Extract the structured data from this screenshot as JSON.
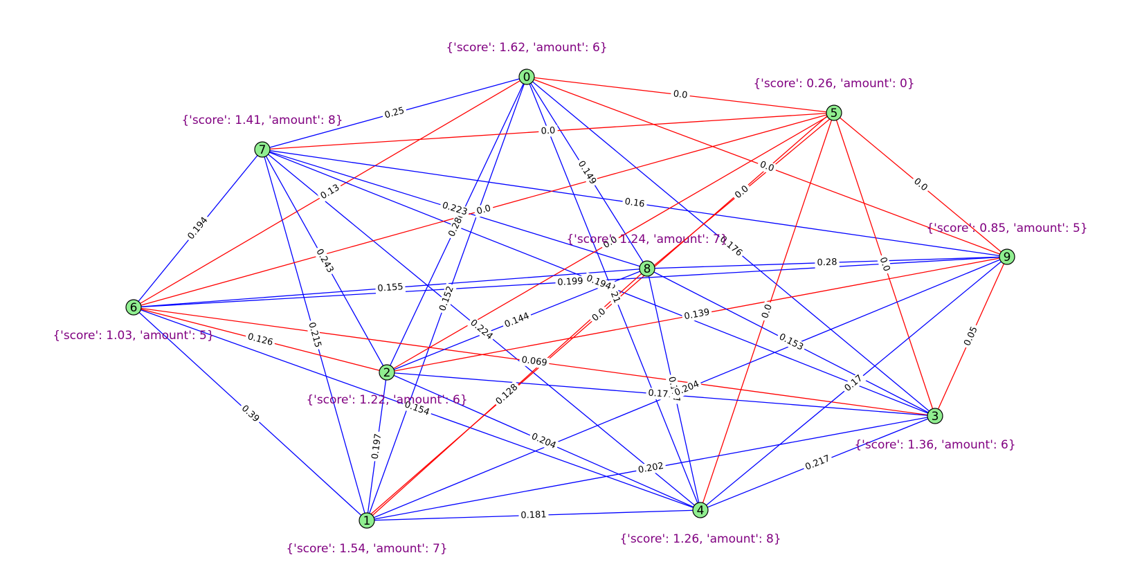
{
  "colors": {
    "node_fill": "#90ee90",
    "attr_text": "#800080",
    "edge_blue": "#0000ff",
    "edge_red": "#ff0000"
  },
  "nodes": [
    {
      "id": "0",
      "attr": "{'score': 1.62, 'amount': 6}"
    },
    {
      "id": "1",
      "attr": "{'score': 1.54, 'amount': 7}"
    },
    {
      "id": "2",
      "attr": "{'score': 1.22, 'amount': 6}"
    },
    {
      "id": "3",
      "attr": "{'score': 1.36, 'amount': 6}"
    },
    {
      "id": "4",
      "attr": "{'score': 1.26, 'amount': 8}"
    },
    {
      "id": "5",
      "attr": "{'score': 0.26, 'amount': 0}"
    },
    {
      "id": "6",
      "attr": "{'score': 1.03, 'amount': 5}"
    },
    {
      "id": "7",
      "attr": "{'score': 1.41, 'amount': 8}"
    },
    {
      "id": "8",
      "attr": "{'score': 1.24, 'amount': 7}"
    },
    {
      "id": "9",
      "attr": "{'score': 0.85, 'amount': 5}"
    }
  ],
  "edges": [
    {
      "source": "0",
      "target": "7",
      "label": "0.25",
      "color": "blue"
    },
    {
      "source": "0",
      "target": "5",
      "label": "0.0",
      "color": "red"
    },
    {
      "source": "0",
      "target": "6",
      "label": "0.13",
      "color": "red"
    },
    {
      "source": "0",
      "target": "2",
      "label": "0.286",
      "color": "blue"
    },
    {
      "source": "0",
      "target": "1",
      "label": "0.152",
      "color": "blue"
    },
    {
      "source": "0",
      "target": "8",
      "label": "0.149",
      "color": "blue"
    },
    {
      "source": "0",
      "target": "4",
      "label": "0.21",
      "color": "blue"
    },
    {
      "source": "0",
      "target": "3",
      "label": "0.176",
      "color": "blue"
    },
    {
      "source": "0",
      "target": "9",
      "label": "0.0",
      "color": "red"
    },
    {
      "source": "7",
      "target": "5",
      "label": "0.0",
      "color": "red"
    },
    {
      "source": "7",
      "target": "6",
      "label": "0.194",
      "color": "blue"
    },
    {
      "source": "7",
      "target": "1",
      "label": "0.215",
      "color": "blue"
    },
    {
      "source": "7",
      "target": "2",
      "label": "0.243",
      "color": "blue"
    },
    {
      "source": "7",
      "target": "4",
      "label": "0.224",
      "color": "blue"
    },
    {
      "source": "7",
      "target": "3",
      "label": "0.194",
      "color": "blue"
    },
    {
      "source": "7",
      "target": "8",
      "label": "0.223",
      "color": "blue"
    },
    {
      "source": "7",
      "target": "9",
      "label": "0.16",
      "color": "blue"
    },
    {
      "source": "5",
      "target": "6",
      "label": "0.0",
      "color": "red"
    },
    {
      "source": "5",
      "target": "2",
      "label": "0.0",
      "color": "red"
    },
    {
      "source": "5",
      "target": "1",
      "label": "0.0",
      "color": "red"
    },
    {
      "source": "5",
      "target": "8",
      "label": "0.0",
      "color": "red"
    },
    {
      "source": "5",
      "target": "4",
      "label": "0.0",
      "color": "red"
    },
    {
      "source": "5",
      "target": "3",
      "label": "0.0",
      "color": "red"
    },
    {
      "source": "5",
      "target": "9",
      "label": "0.0",
      "color": "red"
    },
    {
      "source": "6",
      "target": "8",
      "label": "0.155",
      "color": "blue"
    },
    {
      "source": "6",
      "target": "9",
      "label": "0.199",
      "color": "blue"
    },
    {
      "source": "6",
      "target": "2",
      "label": "0.126",
      "color": "red"
    },
    {
      "source": "6",
      "target": "3",
      "label": "0.069",
      "color": "red"
    },
    {
      "source": "6",
      "target": "4",
      "label": "0.154",
      "color": "blue"
    },
    {
      "source": "6",
      "target": "1",
      "label": "0.39",
      "color": "blue"
    },
    {
      "source": "2",
      "target": "8",
      "label": "0.144",
      "color": "blue"
    },
    {
      "source": "2",
      "target": "9",
      "label": "0.139",
      "color": "red"
    },
    {
      "source": "2",
      "target": "3",
      "label": "0.171",
      "color": "blue"
    },
    {
      "source": "2",
      "target": "4",
      "label": "0.204",
      "color": "blue"
    },
    {
      "source": "2",
      "target": "1",
      "label": "0.197",
      "color": "blue"
    },
    {
      "source": "8",
      "target": "9",
      "label": "0.28",
      "color": "blue"
    },
    {
      "source": "8",
      "target": "3",
      "label": "0.153",
      "color": "blue"
    },
    {
      "source": "8",
      "target": "4",
      "label": "0.177",
      "color": "blue"
    },
    {
      "source": "8",
      "target": "1",
      "label": "0.128",
      "color": "red"
    },
    {
      "source": "9",
      "target": "3",
      "label": "0.05",
      "color": "red"
    },
    {
      "source": "9",
      "target": "4",
      "label": "0.17",
      "color": "blue"
    },
    {
      "source": "9",
      "target": "1",
      "label": "0.204",
      "color": "blue"
    },
    {
      "source": "1",
      "target": "4",
      "label": "0.181",
      "color": "blue"
    },
    {
      "source": "1",
      "target": "3",
      "label": "0.202",
      "color": "blue"
    },
    {
      "source": "4",
      "target": "3",
      "label": "0.217",
      "color": "blue"
    }
  ]
}
